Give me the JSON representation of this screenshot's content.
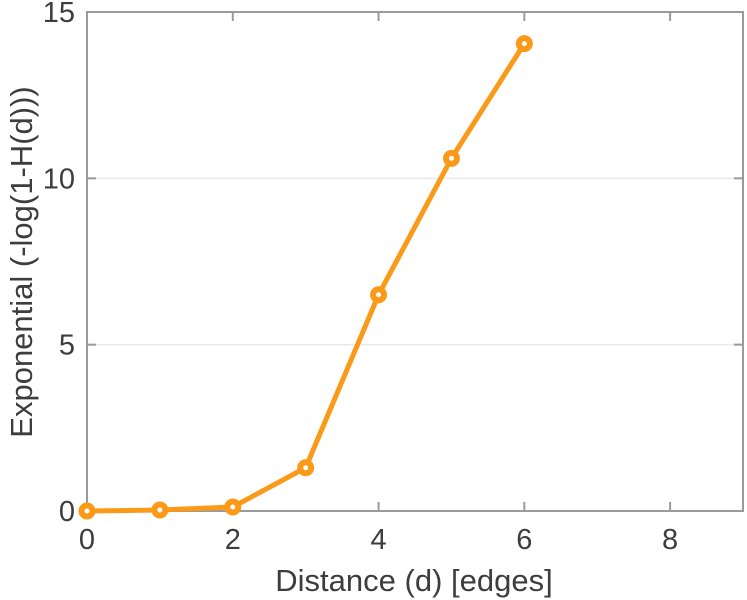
{
  "chart_data": {
    "type": "line",
    "title": "",
    "xlabel": "Distance (d) [edges]",
    "ylabel": "Exponential (-log(1-H(d)))",
    "x": [
      0,
      1,
      2,
      3,
      4,
      5,
      6
    ],
    "y": [
      0,
      0.03,
      0.12,
      1.3,
      6.5,
      10.6,
      14.05
    ],
    "xlim": [
      0,
      9
    ],
    "ylim": [
      0,
      15
    ],
    "xticks": [
      0,
      2,
      4,
      6,
      8
    ],
    "yticks": [
      0,
      5,
      10,
      15
    ],
    "xtick_labels": [
      "0",
      "2",
      "4",
      "6",
      "8"
    ],
    "ytick_labels": [
      "0",
      "5",
      "10",
      "15"
    ],
    "grid": "horizontal",
    "legend_position": "none",
    "line_color": "#FB9A18",
    "marker": "open-circle",
    "marker_fill": "#FFFFFF",
    "axis_color": "#9A9A9A",
    "grid_color": "#EBEBEB",
    "text_color": "#3D3D3D",
    "background_color": "#FFFFFF"
  }
}
